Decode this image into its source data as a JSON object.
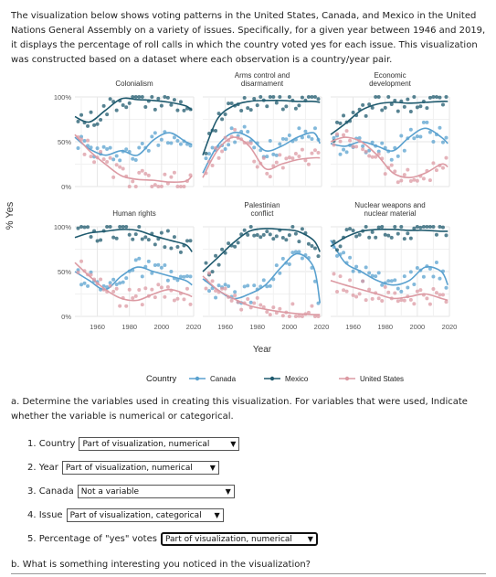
{
  "intro": {
    "text": "The visualization below shows voting patterns in the United States, Canada, and Mexico in the United Nations General Assembly on a variety of issues. Specifically, for a given year between 1946 and 2019, it displays the percentage of roll calls in which the country voted yes for each issue. This visualization was constructed based on a dataset where each observation is a country/year pair."
  },
  "colors": {
    "canada": "#5aa1cf",
    "mexico": "#1f5a6e",
    "us": "#dc9aa3"
  },
  "chart_data": {
    "type": "line",
    "ylabel": "% Yes",
    "xlabel": "Year",
    "x_ticks": [
      "1960",
      "1980",
      "2000",
      "2020"
    ],
    "y_ticks": [
      "0%",
      "50%",
      "100%"
    ],
    "xlim": [
      1946,
      2020
    ],
    "ylim": [
      0,
      100
    ],
    "legend": {
      "title": "Country",
      "position": "bottom",
      "entries": [
        "Canada",
        "Mexico",
        "United States"
      ]
    },
    "panels": [
      {
        "title_lines": [
          "Colonialism"
        ],
        "series": [
          {
            "name": "Canada",
            "x": [
              1946,
              1955,
              1965,
              1975,
              1985,
              1995,
              2005,
              2015,
              2019
            ],
            "y": [
              55,
              42,
              35,
              40,
              35,
              52,
              60,
              50,
              47
            ]
          },
          {
            "name": "Mexico",
            "x": [
              1946,
              1955,
              1965,
              1975,
              1985,
              1995,
              2005,
              2015,
              2019
            ],
            "y": [
              78,
              72,
              85,
              98,
              97,
              96,
              94,
              90,
              85
            ]
          },
          {
            "name": "United States",
            "x": [
              1946,
              1955,
              1965,
              1975,
              1985,
              1995,
              2005,
              2015,
              2019
            ],
            "y": [
              58,
              40,
              25,
              12,
              8,
              7,
              5,
              6,
              12
            ]
          }
        ]
      },
      {
        "title_lines": [
          "Arms control and",
          "disarmament"
        ],
        "series": [
          {
            "name": "Canada",
            "x": [
              1946,
              1955,
              1965,
              1975,
              1985,
              1995,
              2005,
              2015,
              2019
            ],
            "y": [
              15,
              45,
              60,
              55,
              40,
              45,
              55,
              60,
              48
            ]
          },
          {
            "name": "Mexico",
            "x": [
              1946,
              1955,
              1965,
              1975,
              1985,
              1995,
              2005,
              2015,
              2019
            ],
            "y": [
              35,
              75,
              90,
              95,
              96,
              96,
              95,
              95,
              94
            ]
          },
          {
            "name": "United States",
            "x": [
              1946,
              1955,
              1965,
              1975,
              1985,
              1995,
              2005,
              2015,
              2019
            ],
            "y": [
              10,
              40,
              55,
              45,
              20,
              25,
              30,
              32,
              32
            ]
          }
        ]
      },
      {
        "title_lines": [
          "Economic",
          "development"
        ],
        "series": [
          {
            "name": "Canada",
            "x": [
              1946,
              1955,
              1965,
              1975,
              1985,
              1995,
              2005,
              2015,
              2019
            ],
            "y": [
              48,
              45,
              50,
              45,
              40,
              55,
              65,
              55,
              48
            ]
          },
          {
            "name": "Mexico",
            "x": [
              1946,
              1955,
              1965,
              1975,
              1985,
              1995,
              2005,
              2015,
              2019
            ],
            "y": [
              58,
              70,
              85,
              92,
              94,
              93,
              94,
              95,
              95
            ]
          },
          {
            "name": "United States",
            "x": [
              1946,
              1955,
              1965,
              1975,
              1985,
              1995,
              2005,
              2015,
              2019
            ],
            "y": [
              50,
              55,
              50,
              35,
              15,
              10,
              15,
              25,
              22
            ]
          }
        ]
      },
      {
        "title_lines": [
          "Human rights"
        ],
        "series": [
          {
            "name": "Canada",
            "x": [
              1946,
              1955,
              1965,
              1975,
              1985,
              1995,
              2005,
              2015,
              2019
            ],
            "y": [
              50,
              40,
              30,
              45,
              55,
              50,
              45,
              40,
              35
            ]
          },
          {
            "name": "Mexico",
            "x": [
              1946,
              1955,
              1965,
              1975,
              1985,
              1995,
              2005,
              2015,
              2019
            ],
            "y": [
              88,
              93,
              95,
              97,
              96,
              90,
              85,
              80,
              72
            ]
          },
          {
            "name": "United States",
            "x": [
              1946,
              1955,
              1965,
              1975,
              1985,
              1995,
              2005,
              2015,
              2019
            ],
            "y": [
              60,
              45,
              30,
              20,
              18,
              25,
              30,
              25,
              22
            ]
          }
        ]
      },
      {
        "title_lines": [
          "Palestinian",
          "conflict"
        ],
        "series": [
          {
            "name": "Canada",
            "x": [
              1946,
              1955,
              1965,
              1975,
              1985,
              1995,
              2005,
              2015,
              2019
            ],
            "y": [
              42,
              30,
              20,
              25,
              35,
              55,
              70,
              55,
              15
            ]
          },
          {
            "name": "Mexico",
            "x": [
              1946,
              1955,
              1965,
              1975,
              1985,
              1995,
              2005,
              2015,
              2019
            ],
            "y": [
              50,
              65,
              82,
              95,
              98,
              97,
              95,
              85,
              72
            ]
          },
          {
            "name": "United States",
            "x": [
              1946,
              1955,
              1965,
              1975,
              1985,
              1995,
              2005,
              2015,
              2019
            ],
            "y": [
              45,
              30,
              20,
              12,
              8,
              5,
              3,
              2,
              2
            ]
          }
        ]
      },
      {
        "title_lines": [
          "Nuclear weapons and",
          "nuclear material"
        ],
        "series": [
          {
            "name": "Canada",
            "x": [
              1946,
              1955,
              1965,
              1975,
              1985,
              1995,
              2005,
              2015,
              2019
            ],
            "y": [
              85,
              60,
              50,
              40,
              35,
              40,
              55,
              50,
              35
            ]
          },
          {
            "name": "Mexico",
            "x": [
              1946,
              1955,
              1965,
              1975,
              1985,
              1995,
              2005,
              2015,
              2019
            ],
            "y": [
              78,
              88,
              95,
              97,
              97,
              96,
              96,
              95,
              95
            ]
          },
          {
            "name": "United States",
            "x": [
              1946,
              1955,
              1965,
              1975,
              1985,
              1995,
              2005,
              2015,
              2019
            ],
            "y": [
              40,
              35,
              30,
              25,
              20,
              22,
              25,
              20,
              18
            ]
          }
        ]
      }
    ]
  },
  "questions": {
    "a_prompt": "a. Determine the variables used in creating this visualization. For variables that were used, Indicate whether the variable is numerical or categorical.",
    "items": [
      {
        "label": "1. Country",
        "value": "Part of visualization, numerical"
      },
      {
        "label": "2. Year",
        "value": "Part of visualization, numerical"
      },
      {
        "label": "3. Canada",
        "value": "Not a variable"
      },
      {
        "label": "4. Issue",
        "value": "Part of visualization, categorical"
      },
      {
        "label": "5. Percentage of \"yes\" votes",
        "value": "Part of visualization, numerical"
      }
    ],
    "b_prompt": "b. What is something interesting you noticed in the visualization?"
  }
}
